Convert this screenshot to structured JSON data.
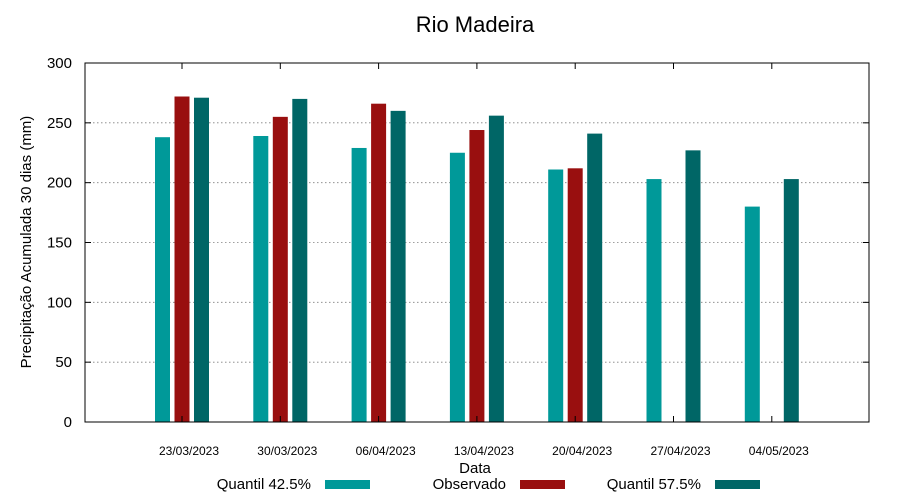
{
  "chart_data": {
    "type": "bar",
    "title": "Rio Madeira",
    "xlabel": "Data",
    "ylabel": "Precipitação Acumulada 30 dias (mm)",
    "ylim": [
      0,
      300
    ],
    "yticks": [
      0,
      50,
      100,
      150,
      200,
      250,
      300
    ],
    "grid": true,
    "legend_position": "bottom",
    "categories": [
      "23/03/2023",
      "30/03/2023",
      "06/04/2023",
      "13/04/2023",
      "20/04/2023",
      "27/04/2023",
      "04/05/2023"
    ],
    "series": [
      {
        "name": "Quantil 42.5%",
        "color": "#009999",
        "values": [
          238,
          239,
          229,
          225,
          211,
          203,
          180
        ]
      },
      {
        "name": "Observado",
        "color": "#990f0f",
        "values": [
          272,
          255,
          266,
          244,
          212,
          null,
          null
        ]
      },
      {
        "name": "Quantil 57.5%",
        "color": "#006666",
        "values": [
          271,
          270,
          260,
          256,
          241,
          227,
          203
        ]
      }
    ]
  }
}
